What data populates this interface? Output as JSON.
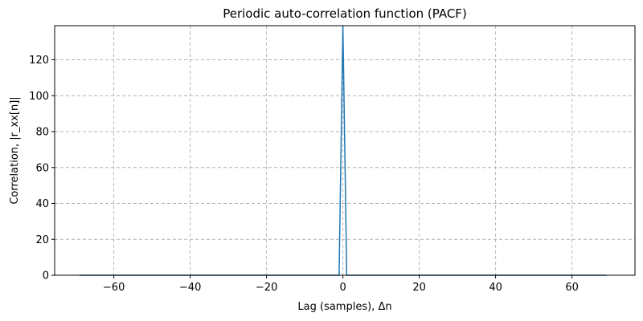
{
  "chart_data": {
    "type": "line",
    "title": "Periodic auto-correlation function (PACF)",
    "xlabel": "Lag (samples), Δn",
    "ylabel": "Correlation, |r_xx[n]|",
    "xlim": [
      -75.5,
      76.5
    ],
    "ylim": [
      0,
      139
    ],
    "xticks": [
      -60,
      -40,
      -20,
      0,
      20,
      40,
      60
    ],
    "yticks": [
      0,
      20,
      40,
      60,
      80,
      100,
      120
    ],
    "grid": true,
    "series": [
      {
        "color": "#1f77b4",
        "x": [
          -69,
          -1,
          0,
          1,
          69
        ],
        "y": [
          0,
          0,
          139,
          0,
          0
        ]
      }
    ]
  }
}
